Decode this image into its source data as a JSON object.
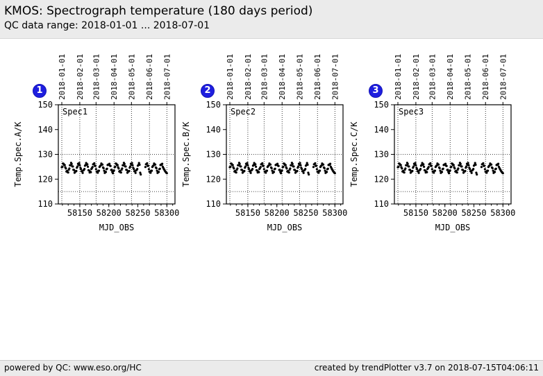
{
  "header": {
    "title": "KMOS: Spectrograph temperature (180 days period)",
    "subtitle": "QC data range: 2018-01-01 ... 2018-07-01"
  },
  "footer": {
    "left": "powered by QC: www.eso.org/HC",
    "right": "created by trendPlotter v3.7 on 2018-07-15T04:06:11"
  },
  "colors": {
    "badge_blue": "#1e1edf",
    "header_bg": "#ebebeb",
    "marker": "#000000",
    "grid": "#000000"
  },
  "chart_data": [
    {
      "type": "scatter",
      "badge": "1",
      "panel_label": "Spec1",
      "ylabel": "Temp.Spec.A/K",
      "xlabel": "MJD_OBS",
      "xlim": [
        58113,
        58314
      ],
      "ylim": [
        110,
        150
      ],
      "yticks": [
        110,
        120,
        130,
        140,
        150
      ],
      "xticks": [
        58150,
        58200,
        58250,
        58300
      ],
      "minor_xtick_step": 10,
      "hgrid": [
        115,
        130
      ],
      "date_marks": [
        {
          "label": "2018-01-01",
          "mjd": 58119
        },
        {
          "label": "2018-02-01",
          "mjd": 58150
        },
        {
          "label": "2018-03-01",
          "mjd": 58178
        },
        {
          "label": "2018-04-01",
          "mjd": 58209
        },
        {
          "label": "2018-05-01",
          "mjd": 58239
        },
        {
          "label": "2018-06-01",
          "mjd": 58270
        },
        {
          "label": "2018-07-01",
          "mjd": 58300
        }
      ],
      "mjd_start": 58119,
      "gap_after_index": 136,
      "gap_days": 7,
      "values": [
        124.8,
        125.0,
        126.3,
        126.2,
        125.7,
        125.7,
        124.8,
        124.3,
        123.1,
        123.3,
        122.8,
        122.7,
        123.8,
        124.3,
        125.6,
        125.6,
        126.6,
        126.1,
        125.2,
        125.1,
        123.8,
        123.7,
        122.6,
        123.2,
        123.1,
        123.3,
        124.6,
        125.1,
        126.2,
        125.9,
        126.5,
        125.6,
        124.6,
        124.1,
        123.2,
        123.2,
        122.5,
        123.5,
        123.7,
        124.1,
        125.4,
        125.7,
        126.5,
        125.8,
        126.0,
        125.0,
        123.6,
        123.5,
        122.7,
        123.1,
        122.8,
        124.1,
        124.5,
        124.9,
        126.0,
        126.0,
        126.4,
        125.3,
        125.4,
        124.0,
        123.0,
        123.0,
        122.6,
        123.4,
        123.4,
        124.9,
        125.3,
        125.5,
        126.3,
        125.9,
        125.9,
        124.7,
        124.4,
        123.4,
        122.5,
        122.9,
        122.9,
        124.0,
        124.2,
        125.7,
        125.9,
        125.8,
        126.2,
        125.4,
        125.3,
        123.7,
        123.8,
        122.9,
        122.4,
        123.2,
        123.5,
        124.8,
        125.0,
        126.3,
        126.2,
        125.7,
        125.7,
        124.8,
        124.3,
        123.1,
        123.3,
        122.8,
        122.7,
        123.8,
        124.3,
        125.6,
        125.6,
        126.6,
        126.1,
        125.2,
        125.1,
        123.8,
        123.7,
        122.6,
        123.2,
        123.1,
        123.3,
        124.6,
        125.1,
        126.2,
        125.9,
        126.5,
        125.6,
        124.6,
        124.1,
        123.2,
        123.2,
        122.5,
        123.5,
        123.7,
        124.1,
        125.4,
        125.7,
        126.5,
        125.8,
        122.6,
        121.9,
        124.9,
        126.0,
        126.0,
        126.4,
        125.3,
        125.4,
        124.0,
        123.0,
        123.0,
        122.6,
        123.4,
        123.4,
        124.9,
        125.3,
        125.5,
        126.3,
        125.9,
        125.9,
        124.7,
        124.4,
        123.4,
        122.5,
        122.9,
        122.9,
        124.0,
        124.2,
        125.7,
        125.9,
        125.8,
        126.2,
        125.0,
        124.5,
        124.0,
        123.6,
        123.2,
        122.9,
        122.6,
        122.4
      ]
    },
    {
      "type": "scatter",
      "badge": "2",
      "panel_label": "Spec2",
      "ylabel": "Temp.Spec.B/K",
      "xlabel": "MJD_OBS",
      "xlim": [
        58113,
        58314
      ],
      "ylim": [
        110,
        150
      ],
      "yticks": [
        110,
        120,
        130,
        140,
        150
      ],
      "xticks": [
        58150,
        58200,
        58250,
        58300
      ],
      "minor_xtick_step": 10,
      "hgrid": [
        115,
        130
      ],
      "date_marks": [
        {
          "label": "2018-01-01",
          "mjd": 58119
        },
        {
          "label": "2018-02-01",
          "mjd": 58150
        },
        {
          "label": "2018-03-01",
          "mjd": 58178
        },
        {
          "label": "2018-04-01",
          "mjd": 58209
        },
        {
          "label": "2018-05-01",
          "mjd": 58239
        },
        {
          "label": "2018-06-01",
          "mjd": 58270
        },
        {
          "label": "2018-07-01",
          "mjd": 58300
        }
      ],
      "mjd_start": 58119,
      "gap_after_index": 136,
      "gap_days": 7,
      "values": [
        124.8,
        125.0,
        126.3,
        126.2,
        125.7,
        125.7,
        124.8,
        124.3,
        123.1,
        123.3,
        122.8,
        122.7,
        123.8,
        124.3,
        125.6,
        125.6,
        126.6,
        126.1,
        125.2,
        125.1,
        123.8,
        123.7,
        122.6,
        123.2,
        123.1,
        123.3,
        124.6,
        125.1,
        126.2,
        125.9,
        126.5,
        125.6,
        124.6,
        124.1,
        123.2,
        123.2,
        122.5,
        123.5,
        123.7,
        124.1,
        125.4,
        125.7,
        126.5,
        125.8,
        126.0,
        125.0,
        123.6,
        123.5,
        122.7,
        123.1,
        122.8,
        124.1,
        124.5,
        124.9,
        126.0,
        126.0,
        126.4,
        125.3,
        125.4,
        124.0,
        123.0,
        123.0,
        122.6,
        123.4,
        123.4,
        124.9,
        125.3,
        125.5,
        126.3,
        125.9,
        125.9,
        124.7,
        124.4,
        123.4,
        122.5,
        122.9,
        122.9,
        124.0,
        124.2,
        125.7,
        125.9,
        125.8,
        126.2,
        125.4,
        125.3,
        123.7,
        123.8,
        122.9,
        122.4,
        123.2,
        123.5,
        124.8,
        125.0,
        126.3,
        126.2,
        125.7,
        125.7,
        124.8,
        124.3,
        123.1,
        123.3,
        122.8,
        122.7,
        123.8,
        124.3,
        125.6,
        125.6,
        126.6,
        126.1,
        125.2,
        125.1,
        123.8,
        123.7,
        122.6,
        123.2,
        123.1,
        123.3,
        124.6,
        125.1,
        126.2,
        125.9,
        126.5,
        125.6,
        124.6,
        124.1,
        123.2,
        123.2,
        122.5,
        123.5,
        123.7,
        124.1,
        125.4,
        125.7,
        126.5,
        125.8,
        122.6,
        121.9,
        124.9,
        126.0,
        126.0,
        126.4,
        125.3,
        125.4,
        124.0,
        123.0,
        123.0,
        122.6,
        123.4,
        123.4,
        124.9,
        125.3,
        125.5,
        126.3,
        125.9,
        125.9,
        124.7,
        124.4,
        123.4,
        122.5,
        122.9,
        122.9,
        124.0,
        124.2,
        125.7,
        125.9,
        125.8,
        126.2,
        125.0,
        124.5,
        124.0,
        123.6,
        123.2,
        122.9,
        122.6,
        122.4
      ]
    },
    {
      "type": "scatter",
      "badge": "3",
      "panel_label": "Spec3",
      "ylabel": "Temp.Spec.C/K",
      "xlabel": "MJD_OBS",
      "xlim": [
        58113,
        58314
      ],
      "ylim": [
        110,
        150
      ],
      "yticks": [
        110,
        120,
        130,
        140,
        150
      ],
      "xticks": [
        58150,
        58200,
        58250,
        58300
      ],
      "minor_xtick_step": 10,
      "hgrid": [
        115,
        130
      ],
      "date_marks": [
        {
          "label": "2018-01-01",
          "mjd": 58119
        },
        {
          "label": "2018-02-01",
          "mjd": 58150
        },
        {
          "label": "2018-03-01",
          "mjd": 58178
        },
        {
          "label": "2018-04-01",
          "mjd": 58209
        },
        {
          "label": "2018-05-01",
          "mjd": 58239
        },
        {
          "label": "2018-06-01",
          "mjd": 58270
        },
        {
          "label": "2018-07-01",
          "mjd": 58300
        }
      ],
      "mjd_start": 58119,
      "gap_after_index": 136,
      "gap_days": 7,
      "values": [
        124.8,
        125.0,
        126.3,
        126.2,
        125.7,
        125.7,
        124.8,
        124.3,
        123.1,
        123.3,
        122.8,
        122.7,
        123.8,
        124.3,
        125.6,
        125.6,
        126.6,
        126.1,
        125.2,
        125.1,
        123.8,
        123.7,
        122.6,
        123.2,
        123.1,
        123.3,
        124.6,
        125.1,
        126.2,
        125.9,
        126.5,
        125.6,
        124.6,
        124.1,
        123.2,
        123.2,
        122.5,
        123.5,
        123.7,
        124.1,
        125.4,
        125.7,
        126.5,
        125.8,
        126.0,
        125.0,
        123.6,
        123.5,
        122.7,
        123.1,
        122.8,
        124.1,
        124.5,
        124.9,
        126.0,
        126.0,
        126.4,
        125.3,
        125.4,
        124.0,
        123.0,
        123.0,
        122.6,
        123.4,
        123.4,
        124.9,
        125.3,
        125.5,
        126.3,
        125.9,
        125.9,
        124.7,
        124.4,
        123.4,
        122.5,
        122.9,
        122.9,
        124.0,
        124.2,
        125.7,
        125.9,
        125.8,
        126.2,
        125.4,
        125.3,
        123.7,
        123.8,
        122.9,
        122.4,
        123.2,
        123.5,
        124.8,
        125.0,
        126.3,
        126.2,
        125.7,
        125.7,
        124.8,
        124.3,
        123.1,
        123.3,
        122.8,
        122.7,
        123.8,
        124.3,
        125.6,
        125.6,
        126.6,
        126.1,
        125.2,
        125.1,
        123.8,
        123.7,
        122.6,
        123.2,
        123.1,
        123.3,
        124.6,
        125.1,
        126.2,
        125.9,
        126.5,
        125.6,
        124.6,
        124.1,
        123.2,
        123.2,
        122.5,
        123.5,
        123.7,
        124.1,
        125.4,
        125.7,
        126.5,
        125.8,
        122.6,
        121.9,
        124.9,
        126.0,
        126.0,
        126.4,
        125.3,
        125.4,
        124.0,
        123.0,
        123.0,
        122.6,
        123.4,
        123.4,
        124.9,
        125.3,
        125.5,
        126.3,
        125.9,
        125.9,
        124.7,
        124.4,
        123.4,
        122.5,
        122.9,
        122.9,
        124.0,
        124.2,
        125.7,
        125.9,
        125.8,
        126.2,
        125.0,
        124.5,
        124.0,
        123.6,
        123.2,
        122.9,
        122.6,
        122.4
      ]
    }
  ]
}
